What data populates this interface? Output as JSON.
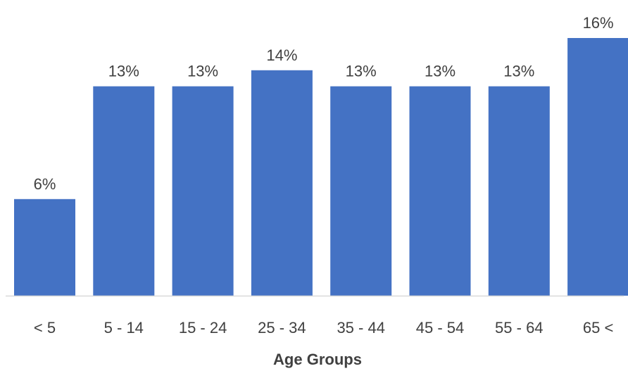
{
  "chart_data": {
    "type": "bar",
    "title": "",
    "xlabel": "Age Groups",
    "ylabel": "",
    "categories": [
      "< 5",
      "5 - 14",
      "15 - 24",
      "25 - 34",
      "35 - 44",
      "45 - 54",
      "55 - 64",
      "65 <"
    ],
    "values": [
      6,
      13,
      13,
      14,
      13,
      13,
      13,
      16
    ],
    "data_labels": [
      "6%",
      "13%",
      "13%",
      "14%",
      "13%",
      "13%",
      "13%",
      "16%"
    ],
    "value_unit": "%",
    "ylim": [
      0,
      16
    ],
    "grid": false,
    "legend": "none",
    "bar_color": "#4472C4",
    "axis_color": "#D9D9D9",
    "text_color": "#404040"
  }
}
